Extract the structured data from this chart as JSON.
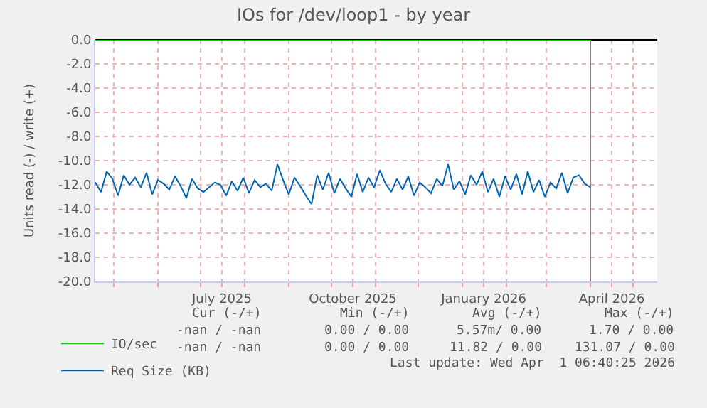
{
  "chart_data": {
    "type": "line",
    "title": "IOs for /dev/loop1 - by year",
    "ylabel": "Units read (-) / write (+)",
    "xlim": [
      "2025-04-18",
      "2026-05-18"
    ],
    "ylim": [
      -20,
      0
    ],
    "xticks": [
      {
        "value": "2025-05-01",
        "label": null
      },
      {
        "value": "2025-06-01",
        "label": null
      },
      {
        "value": "2025-07-01",
        "label": null
      },
      {
        "value": "2025-07-16",
        "label": "July 2025"
      },
      {
        "value": "2025-08-01",
        "label": null
      },
      {
        "value": "2025-09-01",
        "label": null
      },
      {
        "value": "2025-10-01",
        "label": null
      },
      {
        "value": "2025-10-16",
        "label": "October 2025"
      },
      {
        "value": "2025-11-01",
        "label": null
      },
      {
        "value": "2025-12-01",
        "label": null
      },
      {
        "value": "2026-01-01",
        "label": null
      },
      {
        "value": "2026-01-16",
        "label": "January 2026"
      },
      {
        "value": "2026-02-01",
        "label": null
      },
      {
        "value": "2026-03-01",
        "label": null
      },
      {
        "value": "2026-04-01",
        "label": null
      },
      {
        "value": "2026-04-16",
        "label": "April 2026"
      },
      {
        "value": "2026-05-01",
        "label": null
      }
    ],
    "yticks": [
      {
        "value": -20,
        "label": "-20.0"
      },
      {
        "value": -18,
        "label": "-18.0"
      },
      {
        "value": -16,
        "label": "-16.0"
      },
      {
        "value": -14,
        "label": "-14.0"
      },
      {
        "value": -12,
        "label": "-12.0"
      },
      {
        "value": -10,
        "label": "-10.0"
      },
      {
        "value": -8,
        "label": "-8.0"
      },
      {
        "value": -6,
        "label": "-6.0"
      },
      {
        "value": -4,
        "label": "-4.0"
      },
      {
        "value": -2,
        "label": "-2.0"
      },
      {
        "value": 0,
        "label": "0.0"
      }
    ],
    "grid": true,
    "legend": "bottom left",
    "line_style": "solid",
    "marker": "none",
    "ref_lines": [
      {
        "axis": "x",
        "value": "2026-04-01",
        "color": "#8c7f7f"
      }
    ],
    "series": [
      {
        "name": "IO/sec",
        "color": "#00cc00",
        "x": [
          "2025-04-18",
          "2026-04-01"
        ],
        "values": [
          0,
          0
        ]
      },
      {
        "name": "Req Size (KB)",
        "color": "#0066b3",
        "x": [
          "2025-04-18",
          "2025-04-22",
          "2025-04-26",
          "2025-04-30",
          "2025-05-04",
          "2025-05-08",
          "2025-05-12",
          "2025-05-16",
          "2025-05-20",
          "2025-05-24",
          "2025-05-28",
          "2025-06-01",
          "2025-06-05",
          "2025-06-09",
          "2025-06-13",
          "2025-06-17",
          "2025-06-21",
          "2025-06-25",
          "2025-06-29",
          "2025-07-03",
          "2025-07-07",
          "2025-07-11",
          "2025-07-15",
          "2025-07-19",
          "2025-07-23",
          "2025-07-27",
          "2025-07-31",
          "2025-08-04",
          "2025-08-08",
          "2025-08-12",
          "2025-08-16",
          "2025-08-20",
          "2025-08-24",
          "2025-08-28",
          "2025-09-01",
          "2025-09-05",
          "2025-09-09",
          "2025-09-13",
          "2025-09-17",
          "2025-09-21",
          "2025-09-25",
          "2025-09-29",
          "2025-10-03",
          "2025-10-07",
          "2025-10-11",
          "2025-10-15",
          "2025-10-19",
          "2025-10-23",
          "2025-10-27",
          "2025-10-31",
          "2025-11-04",
          "2025-11-08",
          "2025-11-12",
          "2025-11-16",
          "2025-11-20",
          "2025-11-24",
          "2025-11-28",
          "2025-12-02",
          "2025-12-06",
          "2025-12-10",
          "2025-12-14",
          "2025-12-18",
          "2025-12-22",
          "2025-12-26",
          "2025-12-30",
          "2026-01-03",
          "2026-01-07",
          "2026-01-11",
          "2026-01-15",
          "2026-01-19",
          "2026-01-23",
          "2026-01-27",
          "2026-01-31",
          "2026-02-04",
          "2026-02-08",
          "2026-02-12",
          "2026-02-16",
          "2026-02-20",
          "2026-02-24",
          "2026-02-28",
          "2026-03-04",
          "2026-03-08",
          "2026-03-12",
          "2026-03-16",
          "2026-03-20",
          "2026-03-24",
          "2026-03-28",
          "2026-04-01"
        ],
        "values": [
          -11.8,
          -12.6,
          -10.9,
          -11.5,
          -12.9,
          -11.2,
          -12.0,
          -11.4,
          -12.2,
          -11.0,
          -12.8,
          -11.6,
          -11.9,
          -12.4,
          -11.3,
          -12.1,
          -13.1,
          -11.5,
          -12.3,
          -12.6,
          -12.2,
          -11.8,
          -12.0,
          -12.9,
          -11.7,
          -12.5,
          -11.4,
          -12.7,
          -11.6,
          -12.2,
          -11.9,
          -12.5,
          -10.3,
          -11.6,
          -12.8,
          -11.4,
          -12.1,
          -12.9,
          -13.6,
          -11.2,
          -12.4,
          -11.0,
          -12.7,
          -11.5,
          -12.3,
          -13.0,
          -11.1,
          -12.6,
          -11.4,
          -12.2,
          -10.8,
          -11.9,
          -12.6,
          -11.5,
          -12.4,
          -11.3,
          -12.9,
          -11.8,
          -12.2,
          -12.7,
          -11.5,
          -12.1,
          -10.3,
          -12.4,
          -11.7,
          -12.8,
          -11.2,
          -12.0,
          -10.9,
          -12.6,
          -11.5,
          -13.0,
          -11.3,
          -12.4,
          -11.1,
          -12.8,
          -10.9,
          -12.6,
          -11.6,
          -13.0,
          -11.8,
          -12.3,
          -11.0,
          -12.7,
          -11.4,
          -11.2,
          -11.9,
          -12.2
        ]
      }
    ],
    "annotations": [
      "Cur (-/+)",
      "Min (-/+)",
      "Avg (-/+)",
      "Max (-/+)",
      "-nan / -nan",
      "0.00 / 0.00",
      "5.57m/ 0.00",
      "1.70 / 0.00",
      "-nan / -nan",
      "0.00 / 0.00",
      "11.82 / 0.00",
      "131.07 / 0.00",
      "Last update: Wed Apr  1 06:40:25 2026"
    ]
  }
}
